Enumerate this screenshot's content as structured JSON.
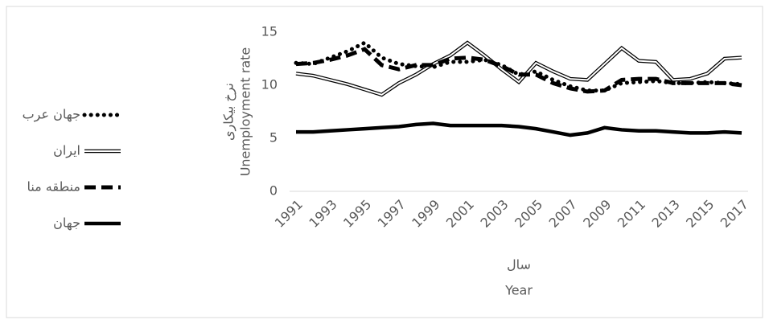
{
  "chart_data": {
    "type": "line",
    "categories": [
      "1991",
      null,
      "1993",
      null,
      "1995",
      null,
      "1997",
      null,
      "1999",
      null,
      "2001",
      null,
      "2003",
      null,
      "2005",
      null,
      "2007",
      null,
      "2009",
      null,
      "2011",
      null,
      "2013",
      null,
      "2015",
      null,
      "2017"
    ],
    "ylabel": [
      "نرخ بیکاری",
      "Unemployment rate"
    ],
    "xlabel": [
      "سال",
      "Year"
    ],
    "ylim": [
      0,
      15
    ],
    "yticks": [
      0,
      5,
      10,
      15
    ],
    "legend": "left",
    "series": [
      {
        "name": "جهان عرب",
        "color": "#000000",
        "style": "dotted",
        "values": [
          12.1,
          12.0,
          12.6,
          13.2,
          14.0,
          12.6,
          12.0,
          11.8,
          11.7,
          12.2,
          12.2,
          12.4,
          11.9,
          11.0,
          11.3,
          10.5,
          9.9,
          9.5,
          9.5,
          10.2,
          10.3,
          10.4,
          10.2,
          10.2,
          10.3,
          10.2,
          10.1
        ]
      },
      {
        "name": "ایران",
        "color": "#000000",
        "style": "double",
        "values": [
          11.1,
          10.9,
          10.5,
          10.1,
          9.6,
          9.1,
          10.2,
          11.0,
          12.0,
          12.8,
          14.0,
          12.8,
          11.5,
          10.3,
          12.1,
          11.3,
          10.6,
          10.5,
          12.0,
          13.5,
          12.3,
          12.2,
          10.5,
          10.6,
          11.1,
          12.5,
          12.6
        ]
      },
      {
        "name": "منطقه منا",
        "color": "#000000",
        "style": "dashed",
        "values": [
          12.0,
          12.1,
          12.4,
          12.8,
          13.4,
          11.9,
          11.5,
          11.9,
          11.9,
          12.5,
          12.6,
          12.4,
          11.8,
          11.0,
          11.0,
          10.2,
          9.7,
          9.4,
          9.5,
          10.5,
          10.6,
          10.6,
          10.2,
          10.2,
          10.2,
          10.2,
          10.0
        ]
      },
      {
        "name": "جهان",
        "color": "#000000",
        "style": "solid",
        "values": [
          5.6,
          5.6,
          5.7,
          5.8,
          5.9,
          6.0,
          6.1,
          6.3,
          6.4,
          6.2,
          6.2,
          6.2,
          6.2,
          6.1,
          5.9,
          5.6,
          5.3,
          5.5,
          6.0,
          5.8,
          5.7,
          5.7,
          5.6,
          5.5,
          5.5,
          5.6,
          5.5
        ]
      }
    ]
  }
}
